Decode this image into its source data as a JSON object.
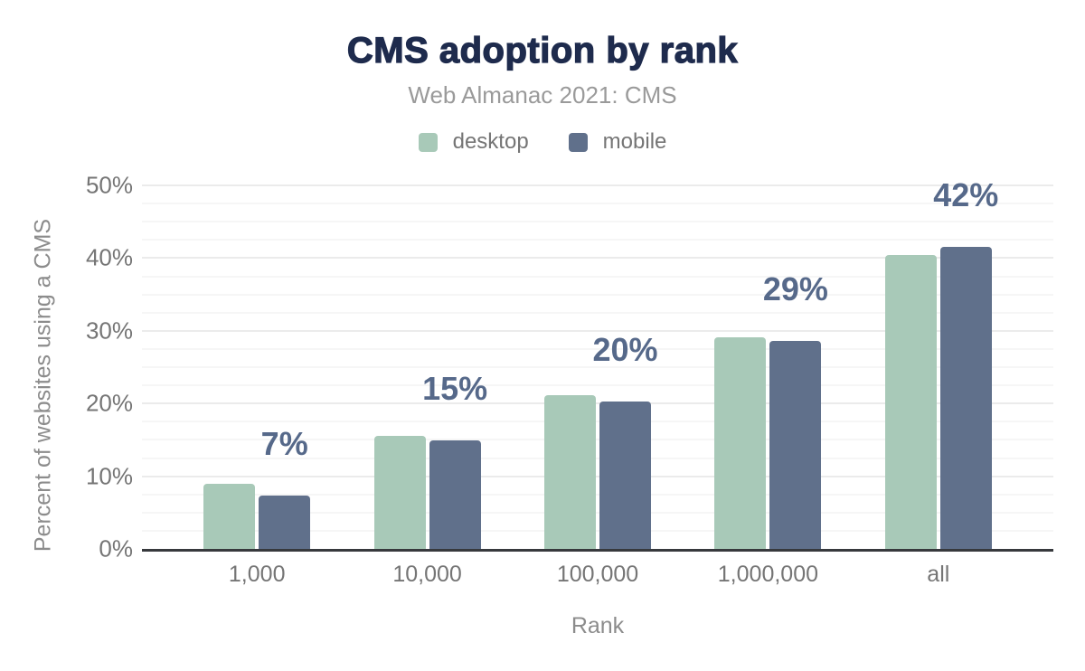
{
  "chart_data": {
    "type": "bar",
    "title": "CMS adoption by rank",
    "subtitle": "Web Almanac 2021: CMS",
    "categories": [
      "1,000",
      "10,000",
      "100,000",
      "1,000,000",
      "all"
    ],
    "series": [
      {
        "name": "desktop",
        "color": "#a8c9b8",
        "values": [
          8.9,
          15.6,
          21.1,
          29.1,
          40.4
        ]
      },
      {
        "name": "mobile",
        "color": "#60708b",
        "values": [
          7.3,
          14.9,
          20.3,
          28.6,
          41.6
        ]
      }
    ],
    "bar_labels": [
      "7%",
      "15%",
      "20%",
      "29%",
      "42%"
    ],
    "xlabel": "Rank",
    "ylabel": "Percent of websites using a CMS",
    "ylim": [
      0,
      50
    ],
    "yticks": [
      {
        "value": 0,
        "label": "0%"
      },
      {
        "value": 10,
        "label": "10%"
      },
      {
        "value": 20,
        "label": "20%"
      },
      {
        "value": 30,
        "label": "30%"
      },
      {
        "value": 40,
        "label": "40%"
      },
      {
        "value": 50,
        "label": "50%"
      }
    ],
    "minor_grid_step": 2.5,
    "grid": "horizontal-only",
    "legend_position": "top"
  },
  "colors": {
    "title": "#1e2b4d",
    "subtitle": "#9a9a9a",
    "tick_label": "#757575",
    "axis_title": "#8c8c8c",
    "category_label": "#757575",
    "bar_value_label": "#56698a",
    "grid_major": "#ebebeb",
    "grid_minor": "#f6f6f6",
    "axis_line": "#37393d",
    "background": "#ffffff"
  }
}
